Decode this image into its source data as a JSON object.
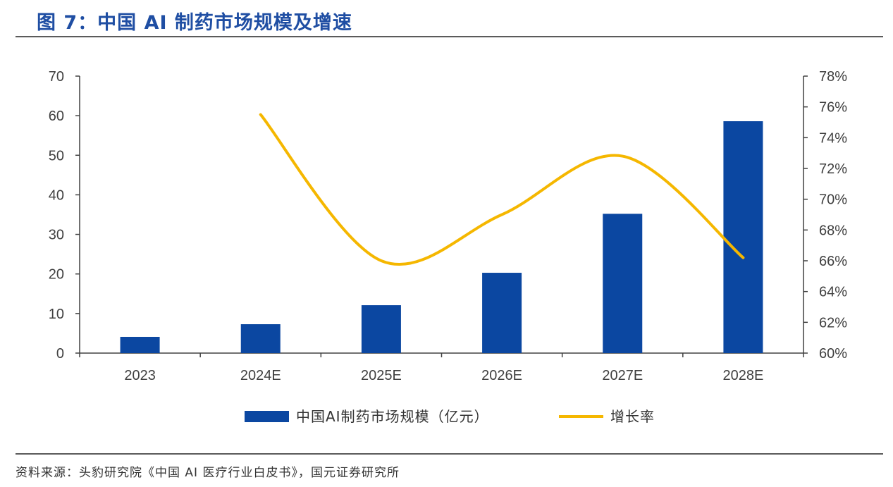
{
  "title": "图 7：中国 AI 制药市场规模及增速",
  "source": "资料来源：头豹研究院《中国 AI 医疗行业白皮书》，国元证券研究所",
  "colors": {
    "bar": "#0b47a1",
    "line": "#f5b700",
    "title": "#1f4ea3"
  },
  "chart_data": {
    "type": "bar",
    "categories": [
      "2023",
      "2024E",
      "2025E",
      "2026E",
      "2027E",
      "2028E"
    ],
    "series": [
      {
        "name": "中国AI制药市场规模（亿元）",
        "kind": "bar",
        "axis": "left",
        "values": [
          4.1,
          7.3,
          12.1,
          20.3,
          35.2,
          58.6
        ]
      },
      {
        "name": "增长率",
        "kind": "line",
        "axis": "right",
        "values": [
          null,
          0.755,
          0.66,
          0.69,
          0.728,
          0.662
        ]
      }
    ],
    "y_left": {
      "min": 0,
      "max": 70,
      "ticks": [
        "0",
        "10",
        "20",
        "30",
        "40",
        "50",
        "60",
        "70"
      ]
    },
    "y_right": {
      "min": 0.6,
      "max": 0.78,
      "ticks": [
        "60%",
        "62%",
        "64%",
        "66%",
        "68%",
        "70%",
        "72%",
        "74%",
        "76%",
        "78%"
      ]
    },
    "legend": {
      "position": "bottom"
    },
    "grid": false
  }
}
